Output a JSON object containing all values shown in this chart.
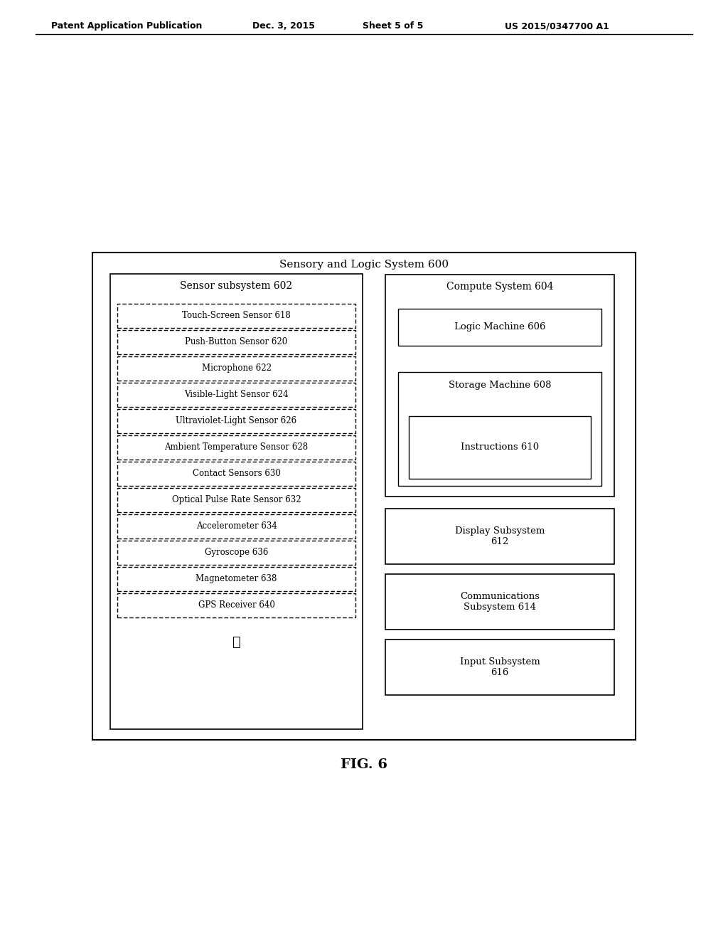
{
  "bg_color": "#ffffff",
  "header_text": "Patent Application Publication",
  "header_date": "Dec. 3, 2015",
  "header_sheet": "Sheet 5 of 5",
  "header_patent": "US 2015/0347700 A1",
  "fig_label": "FIG. 6",
  "outer_title": "Sensory and Logic System 600",
  "sensor_subsystem_title": "Sensor subsystem 602",
  "compute_system_title": "Compute System 604",
  "sensor_items": [
    "Touch-Screen Sensor 618",
    "Push-Button Sensor 620",
    "Microphone 622",
    "Visible-Light Sensor 624",
    "Ultraviolet-Light Sensor 626",
    "Ambient Temperature Sensor 628",
    "Contact Sensors 630",
    "Optical Pulse Rate Sensor 632",
    "Accelerometer 634",
    "Gyroscope 636",
    "Magnetometer 638",
    "GPS Receiver 640"
  ],
  "compute_items": [
    "Logic Machine 606",
    "Storage Machine 608"
  ],
  "instructions_label": "Instructions 610",
  "right_boxes": [
    "Display Subsystem\n612",
    "Communications\nSubsystem 614",
    "Input Subsystem\n616"
  ]
}
